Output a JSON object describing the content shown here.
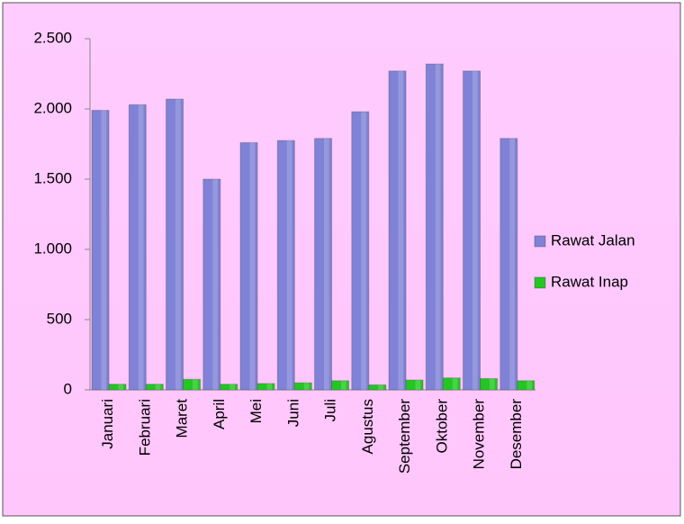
{
  "chart_data": {
    "type": "bar",
    "categories": [
      "Januari",
      "Februari",
      "Maret",
      "April",
      "Mei",
      "Juni",
      "Juli",
      "Agustus",
      "September",
      "Oktober",
      "November",
      "Desember"
    ],
    "series": [
      {
        "name": "Rawat Jalan",
        "color": "#7f82d6",
        "values": [
          1990,
          2030,
          2070,
          1500,
          1760,
          1775,
          1790,
          1980,
          2270,
          2320,
          2270,
          1790
        ]
      },
      {
        "name": "Rawat Inap",
        "color": "#22c722",
        "values": [
          40,
          40,
          75,
          40,
          45,
          50,
          65,
          35,
          70,
          85,
          80,
          65
        ]
      }
    ],
    "ylim": [
      0,
      2500
    ],
    "yticks": [
      0,
      500,
      {
        "value": 1000,
        "label": "1.000"
      },
      {
        "value": 1500,
        "label": "1.500"
      },
      {
        "value": 2000,
        "label": "2.000"
      },
      {
        "value": 2500,
        "label": "2.500"
      }
    ],
    "legend": "right"
  }
}
